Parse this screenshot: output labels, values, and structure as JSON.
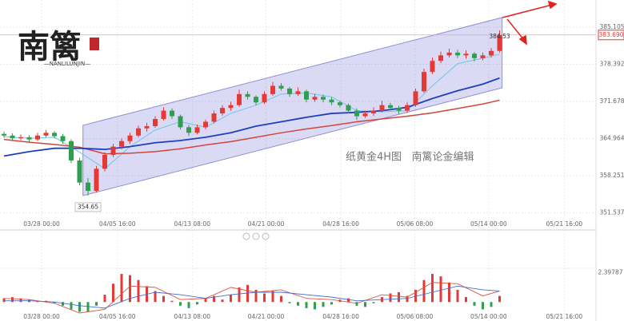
{
  "chart_data": {
    "type": "candlestick",
    "logo": {
      "text": "南篱",
      "subtitle": "—NANLILUNJIN—"
    },
    "annotation": "纸黄金4H图   南篱论金编辑",
    "up_color": "#e53935",
    "down_color": "#2e9e4f",
    "xlim": [
      -0.476,
      70.476
    ],
    "xticks": [
      {
        "value": 4.48,
        "label": "03/28 00:00"
      },
      {
        "value": 13.5,
        "label": "04/05 16:00"
      },
      {
        "value": 22.4,
        "label": "04/13 08:00"
      },
      {
        "value": 31.2,
        "label": "04/21 00:00"
      },
      {
        "value": 40.1,
        "label": "04/28 16:00"
      },
      {
        "value": 48.9,
        "label": "05/06 08:00"
      },
      {
        "value": 57.7,
        "label": "05/14 00:00"
      },
      {
        "value": 66.7,
        "label": "05/21 16:00"
      }
    ],
    "ylim": [
      348.43,
      390.01
    ],
    "yticks": [
      385.105,
      378.392,
      371.678,
      364.964,
      358.251,
      351.537
    ],
    "grid": true,
    "last_price": {
      "value": 383.69,
      "label": "383.690"
    },
    "candles": [
      [
        365.8,
        366.2,
        365.1,
        365.5
      ],
      [
        365.5,
        365.9,
        364.6,
        365.0
      ],
      [
        365.0,
        365.7,
        364.7,
        365.2
      ],
      [
        365.2,
        365.6,
        364.3,
        364.8
      ],
      [
        364.8,
        366.0,
        364.5,
        365.5
      ],
      [
        365.5,
        366.5,
        365.2,
        366.0
      ],
      [
        366.0,
        366.3,
        365.0,
        365.4
      ],
      [
        365.4,
        365.8,
        364.0,
        364.5
      ],
      [
        364.5,
        364.8,
        360.5,
        361.0
      ],
      [
        361.0,
        361.5,
        356.5,
        357.0
      ],
      [
        357.0,
        357.8,
        354.65,
        355.5
      ],
      [
        355.5,
        360.0,
        355.2,
        359.5
      ],
      [
        359.5,
        362.5,
        359.0,
        362.0
      ],
      [
        362.0,
        364.0,
        361.6,
        363.5
      ],
      [
        363.5,
        365.0,
        363.0,
        364.5
      ],
      [
        364.5,
        366.0,
        364.0,
        365.5
      ],
      [
        365.5,
        367.3,
        365.2,
        366.8
      ],
      [
        366.8,
        367.8,
        366.2,
        367.2
      ],
      [
        367.2,
        369.0,
        366.9,
        368.5
      ],
      [
        368.5,
        370.6,
        368.2,
        370.0
      ],
      [
        370.0,
        370.4,
        368.5,
        369.0
      ],
      [
        369.0,
        369.3,
        366.6,
        367.0
      ],
      [
        367.0,
        367.4,
        365.4,
        366.0
      ],
      [
        366.0,
        367.5,
        365.7,
        367.0
      ],
      [
        367.0,
        368.4,
        366.6,
        368.0
      ],
      [
        368.0,
        370.0,
        367.7,
        369.5
      ],
      [
        369.5,
        371.0,
        369.1,
        370.5
      ],
      [
        370.5,
        371.6,
        370.0,
        371.0
      ],
      [
        371.0,
        373.8,
        370.7,
        373.0
      ],
      [
        373.0,
        373.5,
        372.0,
        372.5
      ],
      [
        372.5,
        372.8,
        371.0,
        371.5
      ],
      [
        371.5,
        373.5,
        371.2,
        373.0
      ],
      [
        373.0,
        375.2,
        372.7,
        374.5
      ],
      [
        374.5,
        375.0,
        373.6,
        374.0
      ],
      [
        374.0,
        374.3,
        372.5,
        373.0
      ],
      [
        373.0,
        374.2,
        372.7,
        373.5
      ],
      [
        373.5,
        373.8,
        371.5,
        372.0
      ],
      [
        372.0,
        373.0,
        371.6,
        372.5
      ],
      [
        372.5,
        372.9,
        371.5,
        372.0
      ],
      [
        372.0,
        372.4,
        371.0,
        371.5
      ],
      [
        371.5,
        371.8,
        370.6,
        371.0
      ],
      [
        371.0,
        371.3,
        369.5,
        370.0
      ],
      [
        370.0,
        370.4,
        368.3,
        369.0
      ],
      [
        369.0,
        370.0,
        368.7,
        369.5
      ],
      [
        369.5,
        370.6,
        369.1,
        370.0
      ],
      [
        370.0,
        371.8,
        369.7,
        371.0
      ],
      [
        371.0,
        371.4,
        370.0,
        370.5
      ],
      [
        370.5,
        370.9,
        369.4,
        370.0
      ],
      [
        370.0,
        371.5,
        369.6,
        371.0
      ],
      [
        371.0,
        374.0,
        370.7,
        373.5
      ],
      [
        373.5,
        377.6,
        373.2,
        377.0
      ],
      [
        377.0,
        379.6,
        376.6,
        379.0
      ],
      [
        379.0,
        380.7,
        378.6,
        380.0
      ],
      [
        380.0,
        381.2,
        379.6,
        380.5
      ],
      [
        380.5,
        381.0,
        379.5,
        380.0
      ],
      [
        380.0,
        380.9,
        379.4,
        380.3
      ],
      [
        380.3,
        380.6,
        378.9,
        379.5
      ],
      [
        379.5,
        380.5,
        379.1,
        380.0
      ],
      [
        380.0,
        381.3,
        379.6,
        380.8
      ],
      [
        380.8,
        384.53,
        380.5,
        383.69
      ]
    ],
    "ma_x": [
      0,
      3,
      6,
      9,
      12,
      15,
      18,
      21,
      24,
      27,
      30,
      33,
      36,
      39,
      42,
      45,
      48,
      51,
      54,
      57,
      59
    ],
    "ma_lines": [
      {
        "color": "#1f3fbf",
        "width": 1.8,
        "values": [
          361.8,
          362.6,
          363.2,
          363.2,
          363.0,
          363.5,
          364.2,
          364.6,
          365.2,
          366.0,
          367.2,
          368.0,
          368.8,
          369.5,
          369.7,
          370.0,
          370.6,
          372.2,
          373.6,
          374.8,
          375.9
        ]
      },
      {
        "color": "#d0463b",
        "width": 1.5,
        "values": [
          364.8,
          364.3,
          363.9,
          363.4,
          362.2,
          362.3,
          362.6,
          363.1,
          363.8,
          364.4,
          365.2,
          366.0,
          366.7,
          367.3,
          368.0,
          368.5,
          369.0,
          369.6,
          370.4,
          371.2,
          371.9
        ]
      },
      {
        "color": "#6ec6e8",
        "width": 1,
        "values": [
          365.3,
          365.0,
          365.2,
          362.5,
          359.5,
          363.5,
          366.5,
          368.0,
          367.0,
          369.5,
          371.0,
          373.0,
          373.2,
          372.5,
          370.0,
          369.8,
          370.0,
          374.5,
          378.5,
          379.5,
          380.2
        ]
      }
    ],
    "channel": {
      "x": [
        9.4,
        59.3
      ],
      "upper": [
        367.35,
        386.84
      ],
      "lower": [
        354.64,
        374.13
      ]
    },
    "annotations": [
      {
        "index": 10,
        "value": 354.65
      },
      {
        "index": 59,
        "value": 384.53
      }
    ],
    "macd": {
      "ylim": [
        -0.9,
        2.5
      ],
      "yticks": [
        2.39787
      ],
      "hist": [
        0.3,
        0.4,
        0.3,
        0.2,
        0.1,
        0.1,
        -0.1,
        -0.3,
        -0.6,
        -0.8,
        -0.8,
        -0.3,
        0.6,
        1.5,
        2.3,
        2.2,
        1.8,
        1.3,
        0.9,
        0.5,
        0.1,
        -0.3,
        -0.5,
        -0.2,
        0.3,
        0.5,
        0.2,
        0.6,
        1.2,
        1.4,
        1.0,
        0.7,
        0.9,
        0.5,
        -0.1,
        -0.3,
        -0.5,
        -0.6,
        -0.4,
        -0.2,
        0.2,
        0.3,
        -0.3,
        -0.4,
        -0.1,
        0.4,
        0.7,
        0.8,
        0.5,
        1.0,
        1.8,
        2.3,
        2.1,
        1.6,
        1.0,
        0.4,
        -0.3,
        -0.6,
        -0.4,
        0.5
      ],
      "lines": [
        {
          "color": "#e0533f",
          "values": [
            0.3,
            0.2,
            -0.1,
            -0.9,
            -0.6,
            1.3,
            1.2,
            0.2,
            0.3,
            1.2,
            0.8,
            1.0,
            0.3,
            0.2,
            -0.1,
            0.6,
            0.4,
            1.6,
            1.5,
            0.5,
            0.9
          ]
        },
        {
          "color": "#3d6fd6",
          "values": [
            0.1,
            0.1,
            0.0,
            -0.3,
            -0.5,
            0.3,
            0.8,
            0.6,
            0.3,
            0.6,
            0.8,
            0.8,
            0.6,
            0.4,
            0.1,
            0.2,
            0.3,
            0.8,
            1.3,
            1.0,
            0.9
          ]
        }
      ]
    }
  }
}
